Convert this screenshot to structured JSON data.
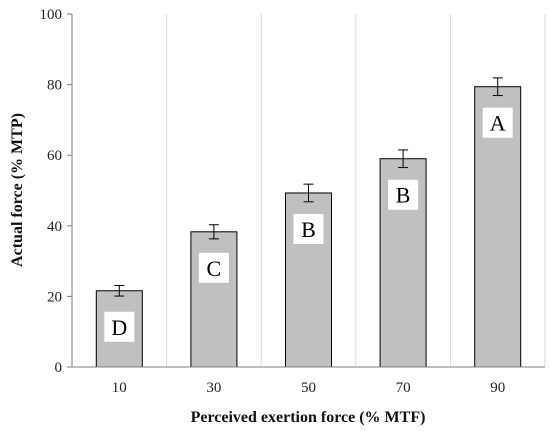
{
  "chart_data": {
    "type": "bar",
    "categories": [
      "10",
      "30",
      "50",
      "70",
      "90"
    ],
    "values": [
      21.6,
      38.3,
      49.3,
      59.0,
      79.4
    ],
    "errors": [
      1.5,
      2.0,
      2.5,
      2.5,
      2.5
    ],
    "group_labels": [
      "D",
      "C",
      "B",
      "B",
      "A"
    ],
    "xlabel": "Perceived exertion force (% MTF)",
    "ylabel": "Actual force (% MTP)",
    "ylim": [
      0,
      100
    ],
    "yticks": [
      0,
      20,
      40,
      60,
      80,
      100
    ],
    "grid": "vertical",
    "bar_color": "#c0c0c0",
    "bar_stroke": "#000000",
    "grid_color": "#d9d9d9"
  }
}
